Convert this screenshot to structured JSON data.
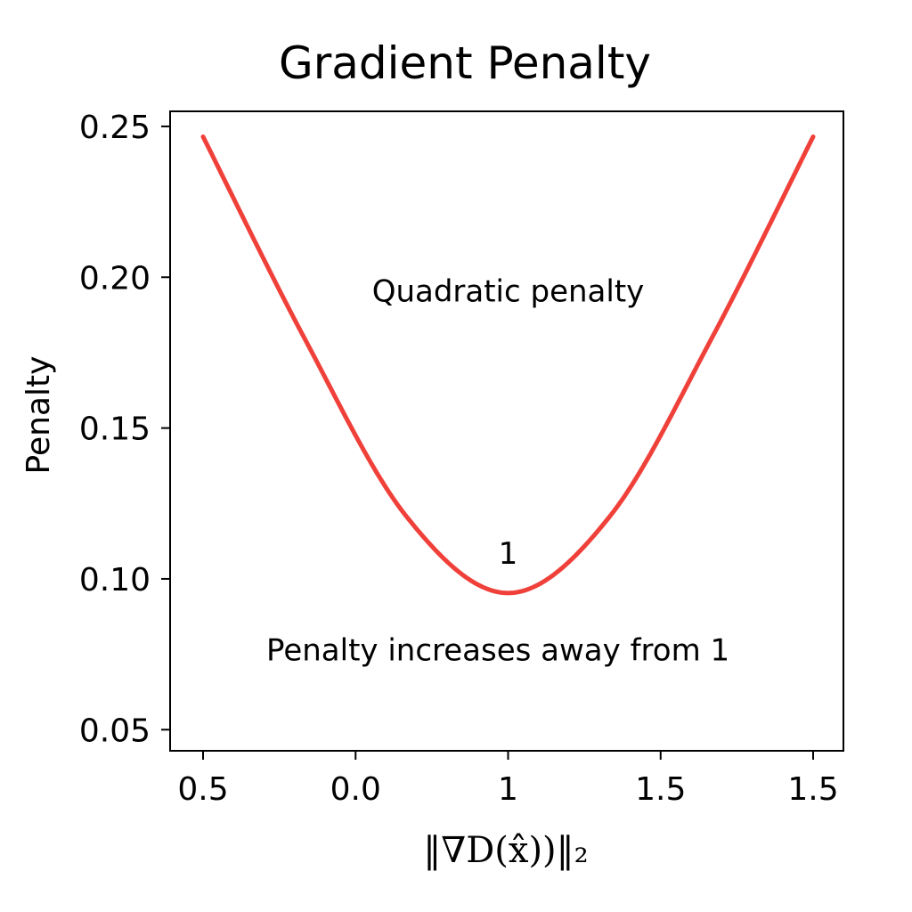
{
  "chart_data": {
    "type": "line",
    "title": "Gradient Penalty",
    "xlabel": "‖∇D(x̂))‖₂",
    "ylabel": "Penalty",
    "x_tick_labels": [
      "0.5",
      "0.0",
      "1",
      "1.5",
      "1.5"
    ],
    "y_ticks": [
      0.05,
      0.1,
      0.15,
      0.2,
      0.25
    ],
    "y_tick_labels": [
      "0.05",
      "0.10",
      "0.15",
      "0.20",
      "0.25"
    ],
    "ylim": [
      0.043,
      0.255
    ],
    "grid": false,
    "legend": "none",
    "series": [
      {
        "color": "#f0403a",
        "x": [
          -0.5,
          0.0,
          0.5,
          1.0,
          1.5,
          2.0,
          2.5
        ],
        "y": [
          0.2466,
          0.1796,
          0.1207,
          0.0953,
          0.1207,
          0.1796,
          0.2466
        ]
      }
    ],
    "annotations": [
      {
        "text": "Quadratic penalty",
        "x": 1.0,
        "y": 0.192
      },
      {
        "text": "1",
        "x": 1.0,
        "y": 0.105
      },
      {
        "text": "Penalty increases away from 1",
        "x": 0.95,
        "y": 0.073
      }
    ]
  }
}
